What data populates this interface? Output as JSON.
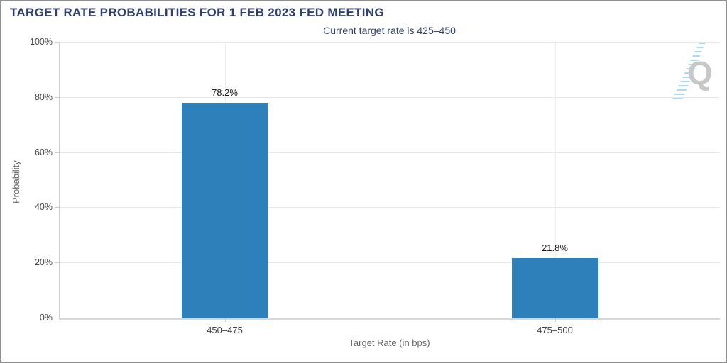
{
  "header": {
    "title": "TARGET RATE PROBABILITIES FOR 1 FEB 2023 FED MEETING",
    "subtitle": "Current target rate is 425–450"
  },
  "chart_data": {
    "type": "bar",
    "title": "TARGET RATE PROBABILITIES FOR 1 FEB 2023 FED MEETING",
    "subtitle": "Current target rate is 425–450",
    "categories": [
      "450–475",
      "475–500"
    ],
    "values": [
      78.2,
      21.8
    ],
    "value_labels": [
      "78.2%",
      "21.8%"
    ],
    "xlabel": "Target Rate (in bps)",
    "ylabel": "Probability",
    "ylim": [
      0,
      100
    ],
    "yticks": [
      0,
      20,
      40,
      60,
      80,
      100
    ],
    "ytick_labels": [
      "0%",
      "20%",
      "40%",
      "60%",
      "80%",
      "100%"
    ],
    "grid": true,
    "legend": "none",
    "bar_color": "#2d80b9"
  },
  "watermark": {
    "letter": "Q"
  },
  "colors": {
    "title_navy": "#2e4172",
    "bar_blue": "#2d80b9",
    "gridline": "#e7e7e7",
    "frame_border": "#8f8f8f"
  }
}
